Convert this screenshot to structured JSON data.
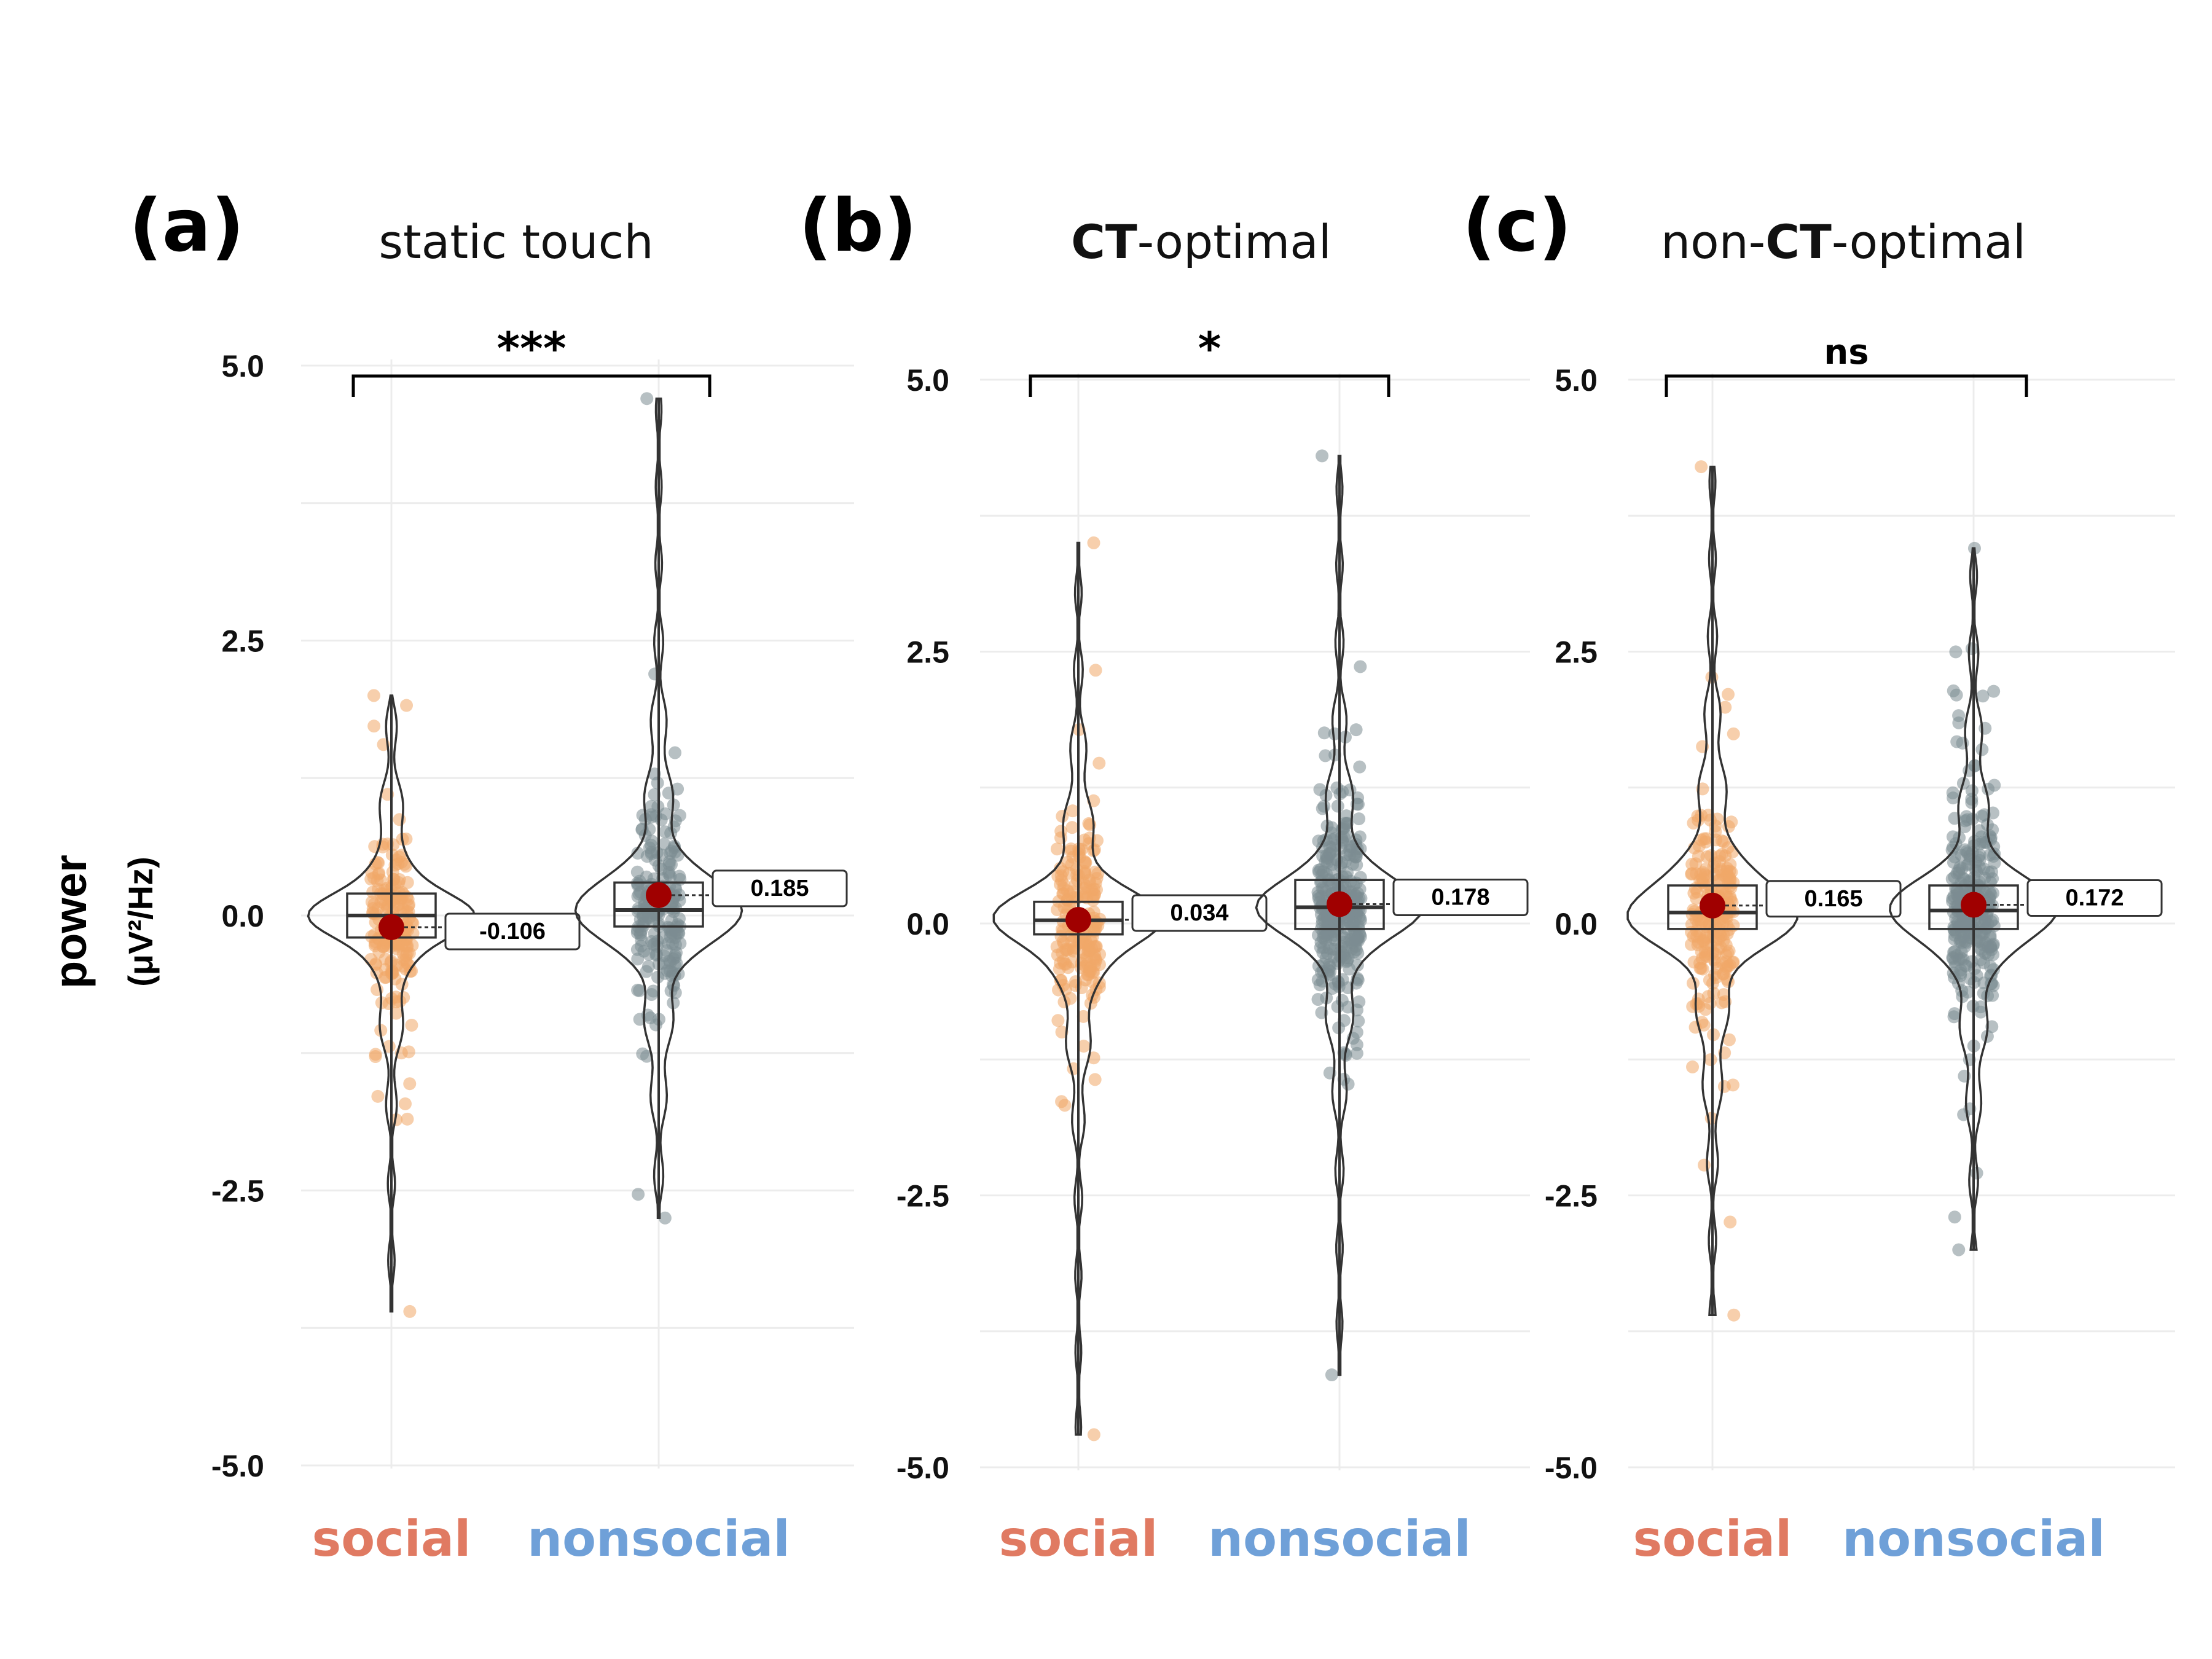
{
  "figure": {
    "ylabel": "power",
    "ylabel_unit": "(μV²/Hz)",
    "colors": {
      "social_points": "#f0a868",
      "nonsocial_points": "#7b8c92",
      "mean_point": "#a00000",
      "social_label": "#e07a62",
      "nonsocial_label": "#6fa0d8",
      "grid": "#ececec"
    }
  },
  "chart_data": [
    {
      "type": "violin-box-jitter",
      "panel_label": "(a)",
      "title": "static touch",
      "significance": "***",
      "categories": [
        "social",
        "nonsocial"
      ],
      "yticks": [
        "5.0",
        "2.5",
        "0.0",
        "-2.5",
        "-5.0"
      ],
      "ylim": [
        -5,
        5
      ],
      "series": [
        {
          "name": "social",
          "mean": -0.106,
          "mean_label": "-0.106",
          "median": 0.0,
          "q1": -0.2,
          "q3": 0.2,
          "min": -3.6,
          "max": 2.0,
          "peak": 0.0,
          "spread": 0.5,
          "n": 200,
          "seed": 11
        },
        {
          "name": "nonsocial",
          "mean": 0.185,
          "mean_label": "0.185",
          "median": 0.05,
          "q1": -0.1,
          "q3": 0.3,
          "min": -2.75,
          "max": 4.7,
          "peak": 0.05,
          "spread": 0.65,
          "n": 210,
          "seed": 23
        }
      ]
    },
    {
      "type": "violin-box-jitter",
      "panel_label": "(b)",
      "title": "CT-optimal",
      "title_bold_prefix": "CT",
      "title_rest": "-optimal",
      "significance": "*",
      "categories": [
        "social",
        "nonsocial"
      ],
      "yticks": [
        "5.0",
        "2.5",
        "0.0",
        "-2.5",
        "-5.0"
      ],
      "ylim": [
        -5,
        5
      ],
      "series": [
        {
          "name": "social",
          "mean": 0.034,
          "mean_label": "0.034",
          "median": 0.03,
          "q1": -0.1,
          "q3": 0.2,
          "min": -4.7,
          "max": 3.5,
          "peak": 0.03,
          "spread": 0.6,
          "n": 200,
          "seed": 37
        },
        {
          "name": "nonsocial",
          "mean": 0.178,
          "mean_label": "0.178",
          "median": 0.15,
          "q1": -0.05,
          "q3": 0.4,
          "min": -4.15,
          "max": 4.3,
          "peak": 0.15,
          "spread": 0.6,
          "n": 320,
          "seed": 41
        }
      ]
    },
    {
      "type": "violin-box-jitter",
      "panel_label": "(c)",
      "title": "non-CT-optimal",
      "title_prefix": "non-",
      "title_bold_prefix": "CT",
      "title_rest": "-optimal",
      "significance": "ns",
      "categories": [
        "social",
        "nonsocial"
      ],
      "yticks": [
        "5.0",
        "2.5",
        "0.0",
        "-2.5",
        "-5.0"
      ],
      "ylim": [
        -5,
        5
      ],
      "series": [
        {
          "name": "social",
          "mean": 0.165,
          "mean_label": "0.165",
          "median": 0.1,
          "q1": -0.05,
          "q3": 0.35,
          "min": -3.6,
          "max": 4.2,
          "peak": 0.1,
          "spread": 0.7,
          "n": 230,
          "seed": 53
        },
        {
          "name": "nonsocial",
          "mean": 0.172,
          "mean_label": "0.172",
          "median": 0.12,
          "q1": -0.05,
          "q3": 0.35,
          "min": -3.0,
          "max": 3.45,
          "peak": 0.12,
          "spread": 0.65,
          "n": 300,
          "seed": 67
        }
      ]
    }
  ]
}
